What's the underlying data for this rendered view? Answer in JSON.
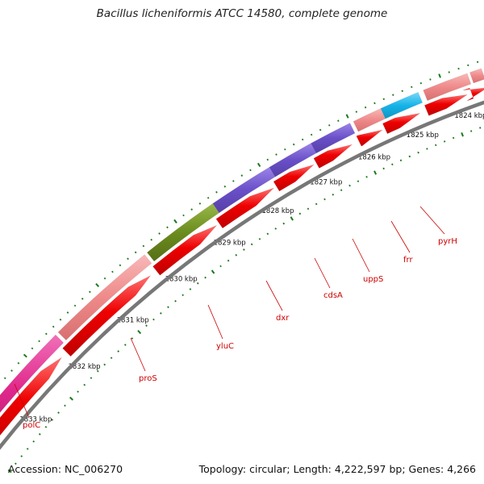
{
  "title": "Bacillus licheniformis ATCC 14580, complete genome",
  "footer": {
    "accession": "Accession: NC_006270",
    "info": "Topology: circular; Length: 4,222,597 bp; Genes: 4,266"
  },
  "colors": {
    "backbone": "#777777",
    "ticks": "#1a7a1a",
    "label_red": "#cc0000",
    "forward_cds": "#ee0000",
    "reverse_cds": "#f08a8a",
    "purple_cds": "#6a4fc8",
    "olive_cds": "#6b8c1e",
    "cyan_cds": "#16b4e8",
    "magenta_cds": "#e0288c"
  },
  "kbp_labels": [
    "1824 kbp",
    "1825 kbp",
    "1826 kbp",
    "1827 kbp",
    "1828 kbp",
    "1829 kbp",
    "1830 kbp",
    "1831 kbp",
    "1832 kbp",
    "1833 kbp"
  ],
  "gene_labels": [
    "polC",
    "proS",
    "yluC",
    "dxr",
    "cdsA",
    "uppS",
    "frr",
    "pyrH"
  ]
}
